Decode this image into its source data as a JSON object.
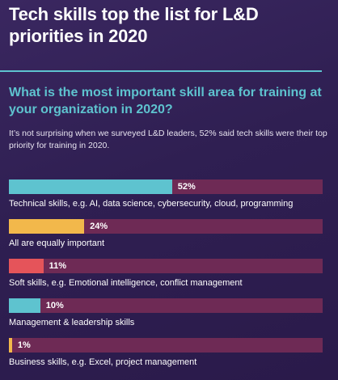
{
  "header": {
    "title": "Tech skills top the list for L&D priorities in 2020",
    "subtitle": "What is the most important skill area for training at your organization in 2020?",
    "intro": "It’s not surprising when we surveyed L&D leaders, 52% said tech skills were their top priority for training in 2020."
  },
  "colors": {
    "background": "#2f1f52",
    "track": "#6e2a55",
    "teal": "#5ec3cf",
    "yellow": "#f2b84b",
    "red": "#e5545a"
  },
  "chart_data": {
    "type": "bar",
    "orientation": "horizontal",
    "xlim": [
      0,
      100
    ],
    "categories": [
      "Technical skills, e.g. AI, data science, cybersecurity, cloud, programming",
      "All are equally important",
      "Soft skills, e.g. Emotional intelligence, conflict management",
      "Management & leadership skills",
      "Business skills, e.g. Excel, project management"
    ],
    "values": [
      52,
      24,
      11,
      10,
      1
    ],
    "value_labels": [
      "52%",
      "24%",
      "11%",
      "10%",
      "1%"
    ],
    "bar_colors": [
      "#5ec3cf",
      "#f2b84b",
      "#e5545a",
      "#5ec3cf",
      "#f2b84b"
    ]
  }
}
